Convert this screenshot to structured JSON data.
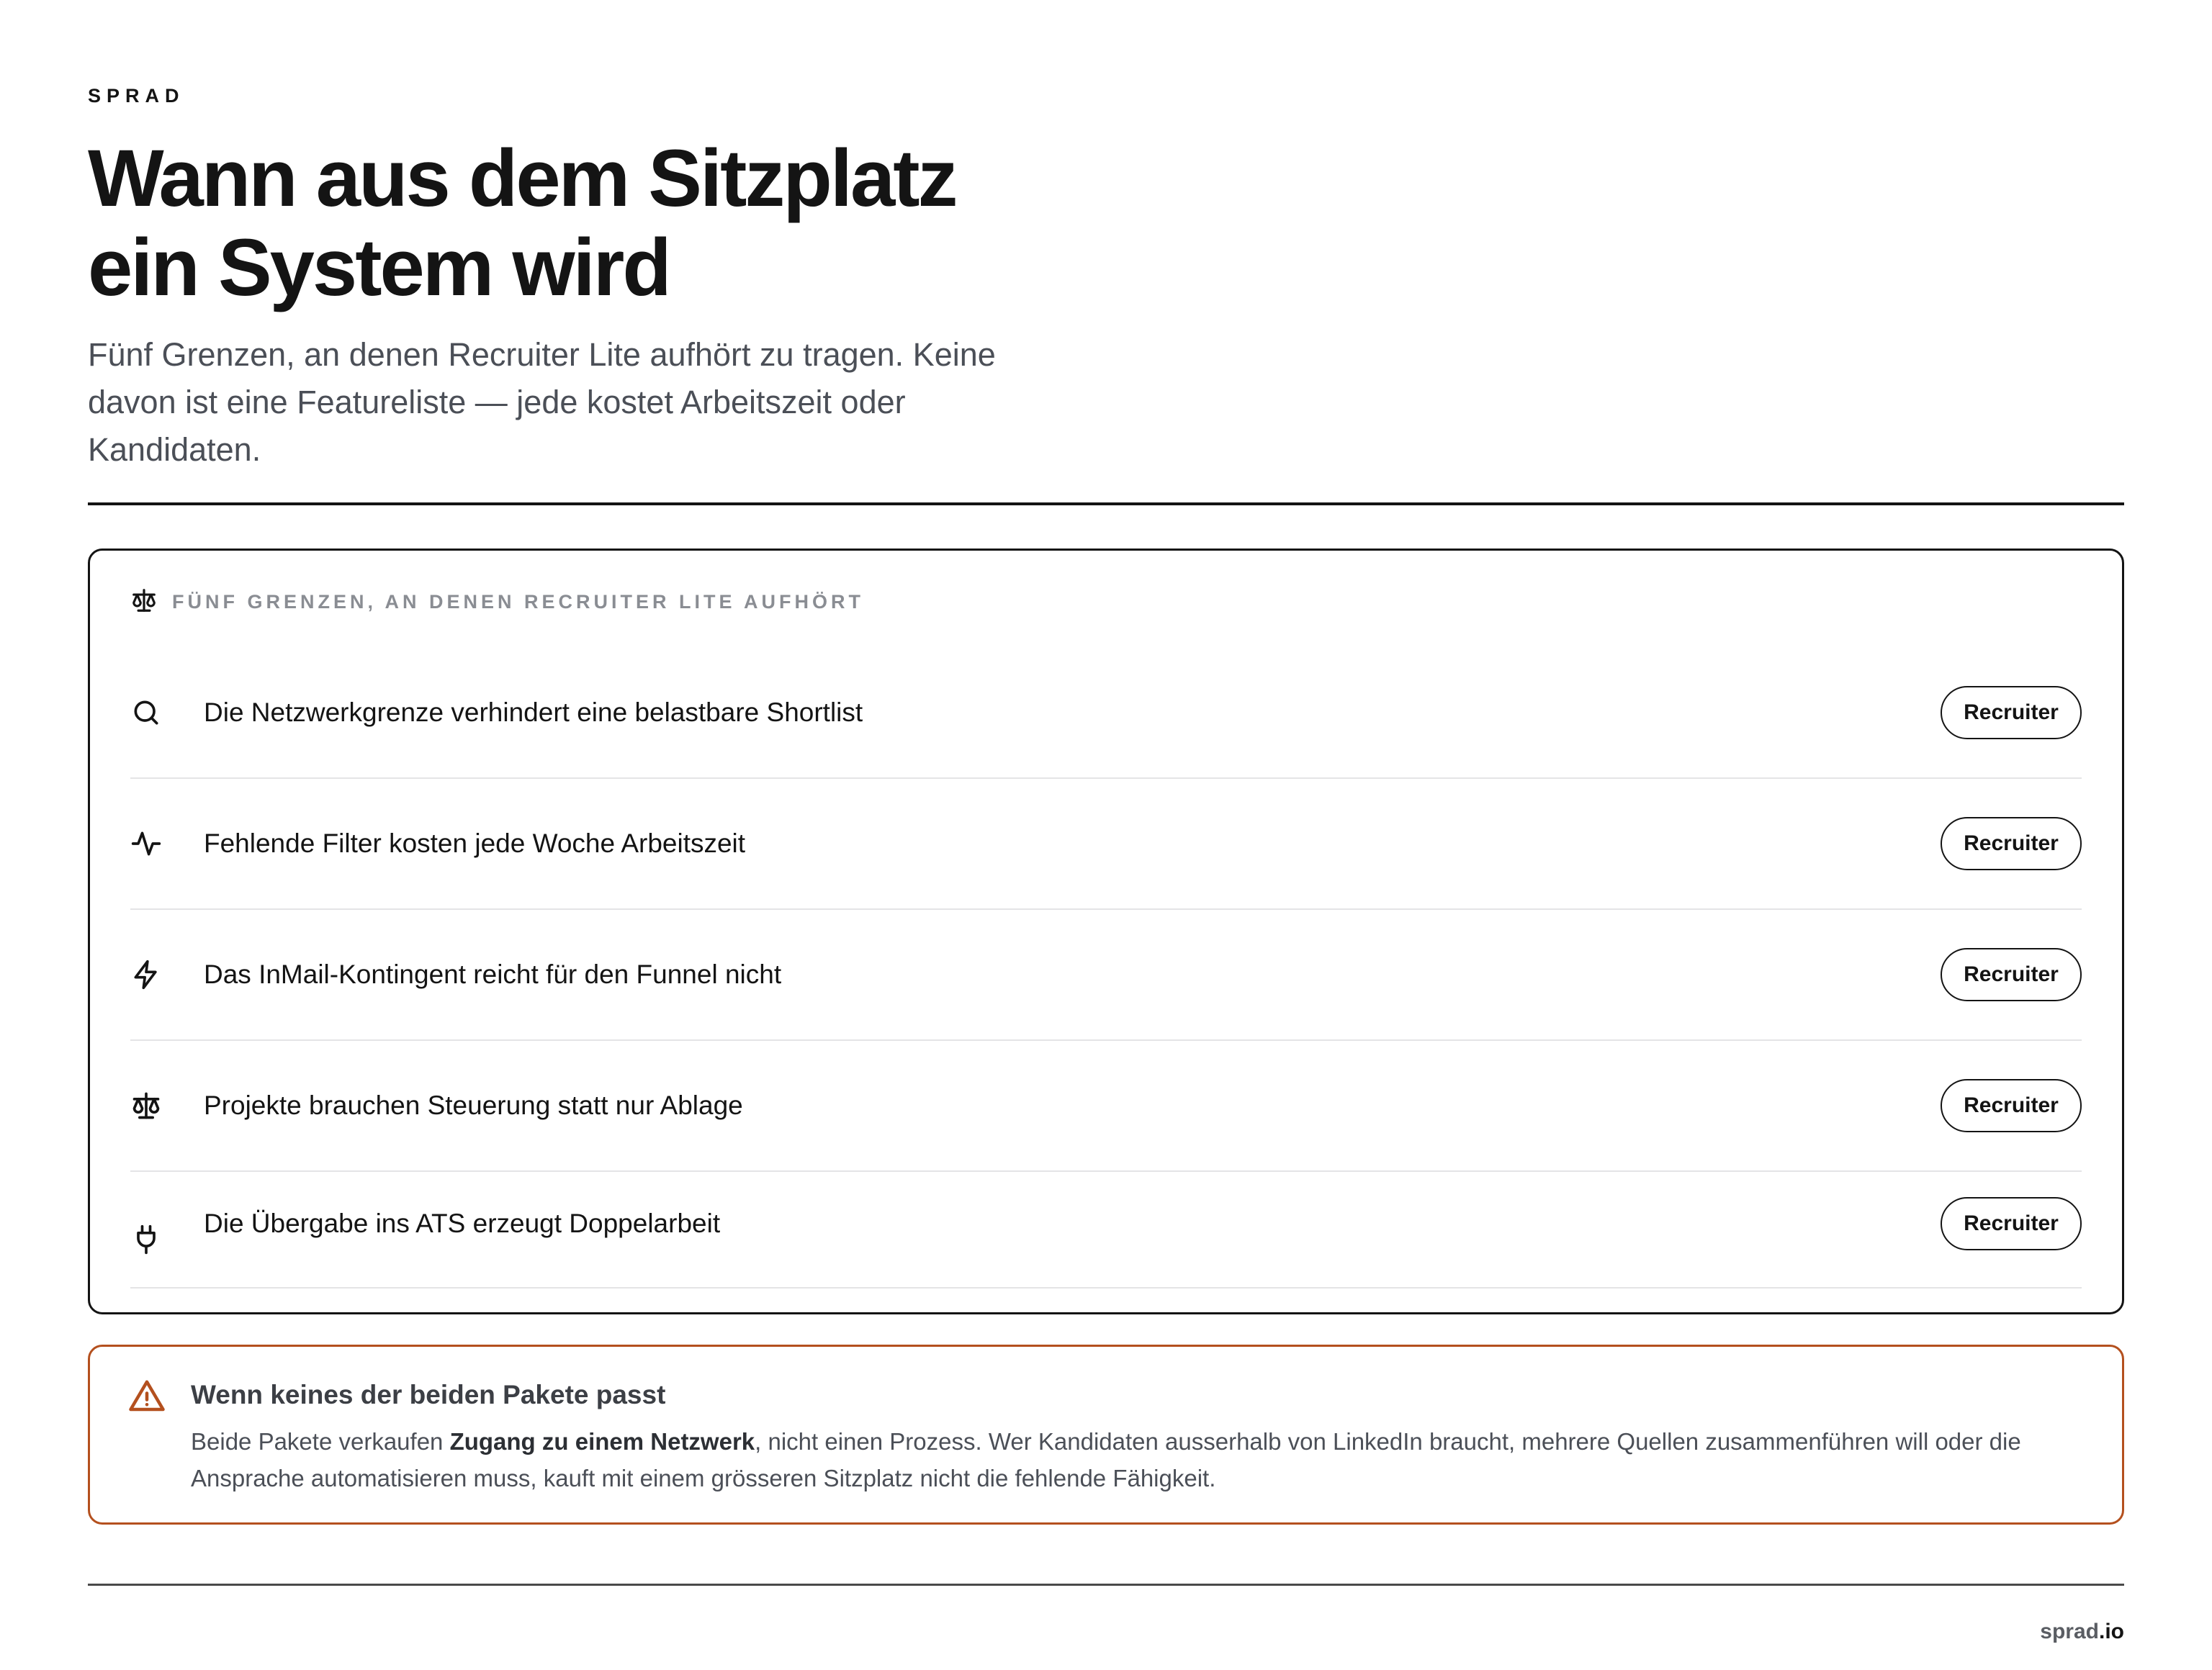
{
  "brand": "SPRAD",
  "title_line1": "Wann aus dem Sitzplatz",
  "title_line2": "ein System wird",
  "subtitle": "Fünf Grenzen, an denen Recruiter Lite aufhört zu tragen. Keine davon ist eine Featureliste — jede kostet Arbeitszeit oder Kandidaten.",
  "panel": {
    "header_icon": "scale-icon",
    "header_label": "FÜNF GRENZEN, AN DENEN RECRUITER LITE AUFHÖRT",
    "items": [
      {
        "icon": "search-icon",
        "label": "Die Netzwerkgrenze verhindert eine belastbare Shortlist",
        "tag": "Recruiter"
      },
      {
        "icon": "activity-icon",
        "label": "Fehlende Filter kosten jede Woche Arbeitszeit",
        "tag": "Recruiter"
      },
      {
        "icon": "lightning-icon",
        "label": "Das InMail-Kontingent reicht für den Funnel nicht",
        "tag": "Recruiter"
      },
      {
        "icon": "scale-icon",
        "label": "Projekte brauchen Steuerung statt nur Ablage",
        "tag": "Recruiter"
      },
      {
        "icon": "plug-icon",
        "label": "Die Übergabe ins ATS erzeugt Doppelarbeit",
        "tag": "Recruiter"
      }
    ]
  },
  "warning": {
    "icon": "warning-triangle-icon",
    "title": "Wenn keines der beiden Pakete passt",
    "body_before": "Beide Pakete verkaufen ",
    "body_bold": "Zugang zu einem Netzwerk",
    "body_after": ", nicht einen Prozess. Wer Kandidaten ausserhalb von LinkedIn braucht, mehrere Quellen zusammenführen will oder die Ansprache automatisieren muss, kauft mit einem grösseren Sitzplatz nicht die fehlende Fähigkeit."
  },
  "footer": {
    "site_name": "sprad",
    "site_tld": ".io"
  },
  "colors": {
    "ink": "#141414",
    "muted": "#8a8d93",
    "warning_border": "#b4501e"
  }
}
